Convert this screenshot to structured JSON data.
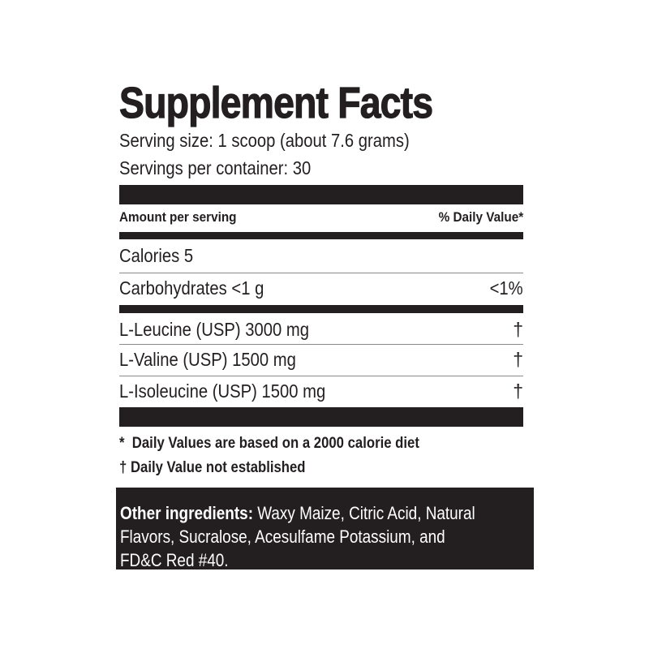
{
  "title": "Supplement Facts",
  "serving_size": "Serving size: 1 scoop (about 7.6 grams)",
  "servings_per_container": "Servings per container: 30",
  "header": {
    "amount": "Amount per serving",
    "daily_value": "% Daily Value*"
  },
  "rows": [
    {
      "name": "Calories 5",
      "dv": ""
    },
    {
      "name": "Carbohydrates <1 g",
      "dv": "<1%"
    },
    {
      "name": "L-Leucine (USP) 3000 mg",
      "dv": "†"
    },
    {
      "name": "L-Valine (USP) 1500 mg",
      "dv": "†"
    },
    {
      "name": "L-Isoleucine (USP) 1500 mg",
      "dv": "†"
    }
  ],
  "footnotes": [
    "*  Daily Values are based on a 2000 calorie diet",
    "† Daily Value not established"
  ],
  "other_ingredients": {
    "label": "Other ingredients:",
    "line1": " Waxy Maize, Citric Acid, Natural",
    "line2": "Flavors, Sucralose, Acesulfame Potassium, and",
    "line3": "FD&C Red #40."
  },
  "colors": {
    "ink": "#231f20",
    "background": "#ffffff"
  }
}
